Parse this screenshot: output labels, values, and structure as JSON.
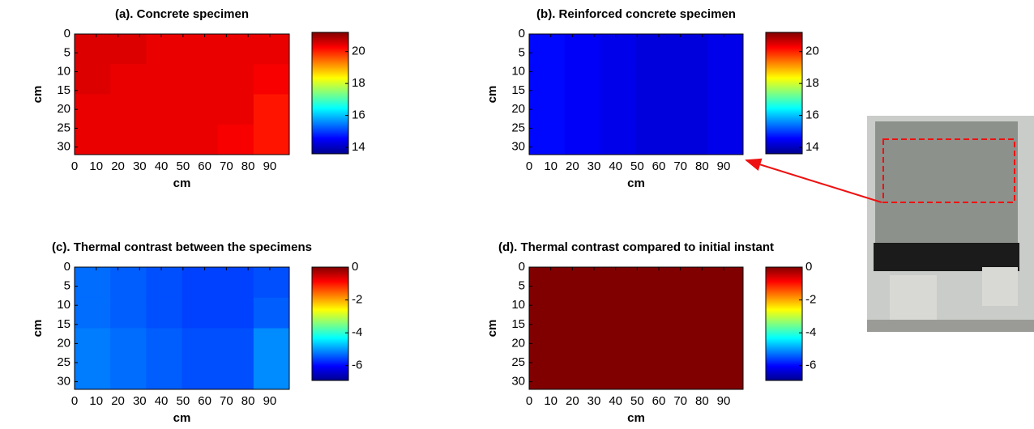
{
  "chart_data": [
    {
      "type": "heatmap",
      "title": "(a). Concrete specimen",
      "xlabel": "cm",
      "ylabel": "cm",
      "colormap": "jet",
      "xlim": [
        0,
        99
      ],
      "ylim": [
        0,
        32
      ],
      "xticks": [
        0,
        10,
        20,
        30,
        40,
        50,
        60,
        70,
        80,
        90
      ],
      "yticks": [
        0,
        5,
        10,
        15,
        20,
        25,
        30
      ],
      "clim": [
        13.6,
        21.2
      ],
      "cticks": [
        14,
        16,
        18,
        20
      ],
      "values": [
        [
          20.5,
          20.5,
          20.4,
          20.4,
          20.4,
          20.4
        ],
        [
          20.5,
          20.4,
          20.4,
          20.4,
          20.4,
          20.3
        ],
        [
          20.4,
          20.4,
          20.4,
          20.4,
          20.4,
          20.1
        ],
        [
          20.4,
          20.4,
          20.4,
          20.4,
          20.3,
          20.1
        ]
      ]
    },
    {
      "type": "heatmap",
      "title": "(b). Reinforced concrete specimen",
      "xlabel": "cm",
      "ylabel": "cm",
      "colormap": "jet",
      "xlim": [
        0,
        99
      ],
      "ylim": [
        0,
        32
      ],
      "xticks": [
        0,
        10,
        20,
        30,
        40,
        50,
        60,
        70,
        80,
        90
      ],
      "yticks": [
        0,
        5,
        10,
        15,
        20,
        25,
        30
      ],
      "clim": [
        13.6,
        21.2
      ],
      "cticks": [
        14,
        16,
        18,
        20
      ],
      "values": [
        [
          14.6,
          14.5,
          14.4,
          14.3,
          14.3,
          14.4
        ],
        [
          14.6,
          14.5,
          14.4,
          14.3,
          14.3,
          14.4
        ],
        [
          14.6,
          14.5,
          14.4,
          14.3,
          14.3,
          14.4
        ],
        [
          14.6,
          14.5,
          14.4,
          14.3,
          14.3,
          14.4
        ]
      ]
    },
    {
      "type": "heatmap",
      "title": "(c). Thermal contrast between the specimens",
      "xlabel": "cm",
      "ylabel": "cm",
      "colormap": "jet",
      "xlim": [
        0,
        99
      ],
      "ylim": [
        0,
        32
      ],
      "xticks": [
        0,
        10,
        20,
        30,
        40,
        50,
        60,
        70,
        80,
        90
      ],
      "yticks": [
        0,
        5,
        10,
        15,
        20,
        25,
        30
      ],
      "clim": [
        -6.9,
        0
      ],
      "cticks": [
        0,
        -2,
        -4,
        -6
      ],
      "values": [
        [
          -5.3,
          -5.4,
          -5.5,
          -5.6,
          -5.6,
          -5.5
        ],
        [
          -5.3,
          -5.4,
          -5.5,
          -5.6,
          -5.6,
          -5.4
        ],
        [
          -5.2,
          -5.3,
          -5.4,
          -5.5,
          -5.5,
          -5.1
        ],
        [
          -5.2,
          -5.3,
          -5.4,
          -5.5,
          -5.5,
          -5.1
        ]
      ]
    },
    {
      "type": "heatmap",
      "title": "(d). Thermal contrast compared to initial instant",
      "xlabel": "cm",
      "ylabel": "cm",
      "colormap": "jet",
      "xlim": [
        0,
        99
      ],
      "ylim": [
        0,
        32
      ],
      "xticks": [
        0,
        10,
        20,
        30,
        40,
        50,
        60,
        70,
        80,
        90
      ],
      "yticks": [
        0,
        5,
        10,
        15,
        20,
        25,
        30
      ],
      "clim": [
        -6.9,
        0
      ],
      "cticks": [
        0,
        -2,
        -4,
        -6
      ],
      "values": [
        [
          0,
          0,
          0,
          0,
          0,
          0
        ],
        [
          0,
          0,
          0,
          0,
          0,
          0
        ],
        [
          0,
          0,
          0,
          0,
          0,
          0
        ],
        [
          0,
          0,
          0,
          0,
          0,
          0
        ]
      ]
    }
  ]
}
